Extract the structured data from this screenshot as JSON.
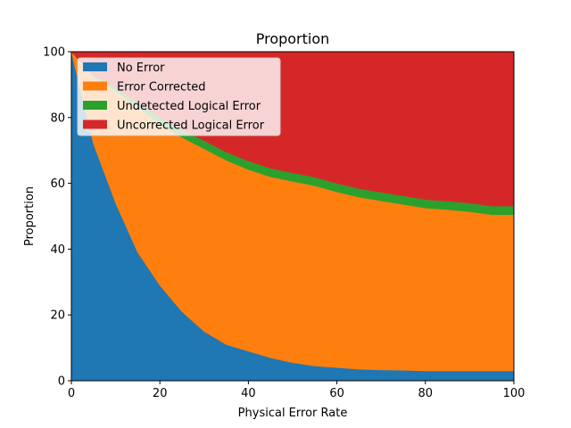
{
  "chart_data": {
    "type": "area",
    "stacked": true,
    "title": "Proportion",
    "xlabel": "Physical Error Rate",
    "ylabel": "Proportion",
    "xlim": [
      0,
      100
    ],
    "ylim": [
      0,
      100
    ],
    "xticks": [
      0,
      20,
      40,
      60,
      80,
      100
    ],
    "yticks": [
      0,
      20,
      40,
      60,
      80,
      100
    ],
    "grid": false,
    "legend_position": "top-left",
    "x": [
      0,
      5,
      10,
      15,
      20,
      25,
      30,
      35,
      40,
      45,
      50,
      55,
      60,
      65,
      70,
      75,
      80,
      85,
      90,
      95,
      100
    ],
    "series": [
      {
        "name": "No Error",
        "color": "#1f77b4",
        "values": [
          100,
          72,
          54,
          39,
          29,
          21,
          15,
          11,
          9,
          7,
          5.5,
          4.5,
          4,
          3.5,
          3.3,
          3.2,
          3,
          3,
          3,
          3,
          3
        ]
      },
      {
        "name": "Error Corrected",
        "color": "#ff7f0e",
        "values": [
          0,
          20.5,
          34,
          44,
          49,
          53,
          55.5,
          56,
          55.2,
          55,
          55.1,
          54.8,
          53.4,
          52.3,
          51.4,
          50.4,
          49.5,
          49,
          48.4,
          47.5,
          47.5
        ]
      },
      {
        "name": "Undetected Logical Error",
        "color": "#2ca02c",
        "values": [
          0,
          0.5,
          1,
          1.5,
          2,
          2.2,
          2.5,
          2.5,
          2.6,
          2.6,
          2.6,
          2.6,
          2.6,
          2.6,
          2.6,
          2.6,
          2.6,
          2.6,
          2.6,
          2.6,
          2.6
        ]
      },
      {
        "name": "Uncorrected Logical Error",
        "color": "#d62728",
        "values": [
          0,
          7,
          11,
          15.5,
          20,
          23.8,
          27,
          30.5,
          33.2,
          35.4,
          36.8,
          38.1,
          40,
          41.6,
          42.7,
          43.8,
          44.9,
          45.4,
          46,
          46.9,
          46.9
        ]
      }
    ]
  }
}
